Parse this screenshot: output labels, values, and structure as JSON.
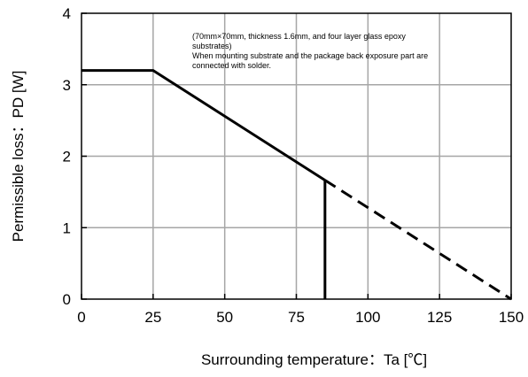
{
  "chart_data": {
    "type": "line",
    "xlabel": "Surrounding temperature：Ta [℃]",
    "ylabel": "Permissible loss：PD [W]",
    "xlim": [
      0,
      150
    ],
    "ylim": [
      0,
      4
    ],
    "xticks": [
      0,
      25,
      50,
      75,
      100,
      125,
      150
    ],
    "yticks": [
      0,
      1,
      2,
      3,
      4
    ],
    "x_tick_labels": [
      "0",
      "25",
      "50",
      "75",
      "100",
      "125",
      "150"
    ],
    "y_tick_labels": [
      "0",
      "1",
      "2",
      "3",
      "4"
    ],
    "grid": true,
    "annotation_lines": [
      "(70mm×70mm, thickness 1.6mm, and four layer glass epoxy",
      "substrates)",
      "When mounting substrate and the package back exposure part are",
      "connected with solder."
    ],
    "series": [
      {
        "style": "solid",
        "x": [
          0,
          25,
          85
        ],
        "y": [
          3.2,
          3.2,
          1.664
        ]
      },
      {
        "style": "solid",
        "x": [
          85,
          85
        ],
        "y": [
          1.664,
          0
        ]
      },
      {
        "style": "dashed",
        "x": [
          85,
          150
        ],
        "y": [
          1.664,
          0
        ]
      }
    ],
    "colors": {
      "line": "#000000",
      "grid": "#a6a6a6",
      "frame": "#000000"
    }
  }
}
